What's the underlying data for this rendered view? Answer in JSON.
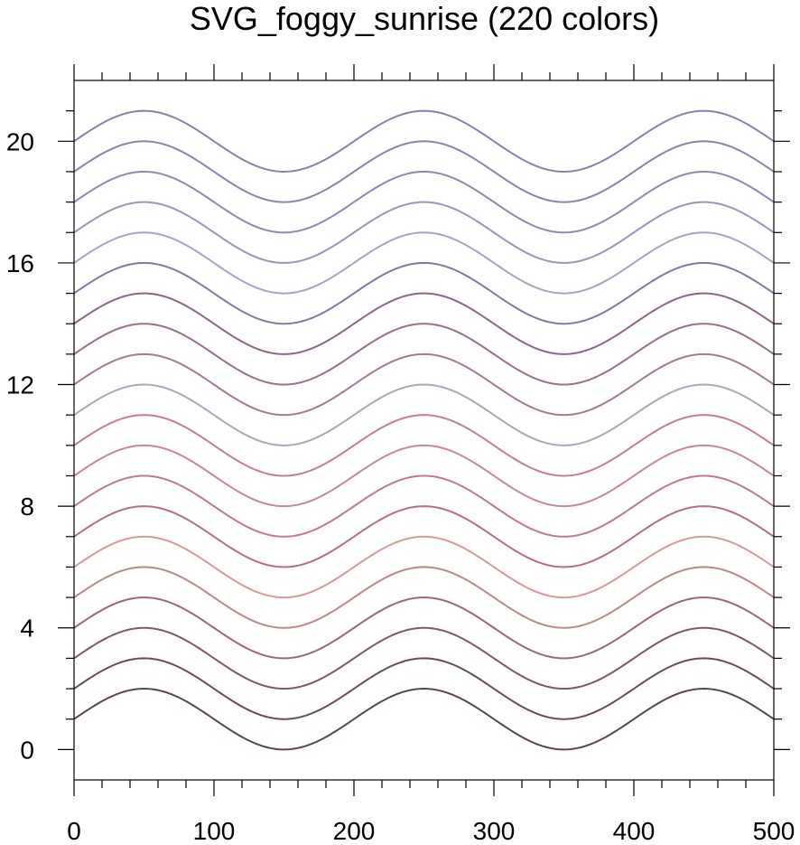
{
  "chart_data": {
    "type": "line",
    "title": "SVG_foggy_sunrise (220 colors)",
    "xlabel": "",
    "ylabel": "",
    "xlim": [
      0,
      500
    ],
    "ylim": [
      -1,
      22
    ],
    "x_ticks": [
      0,
      100,
      200,
      300,
      400,
      500
    ],
    "y_ticks": [
      0,
      4,
      8,
      12,
      16,
      20
    ],
    "grid": false,
    "legend": "none",
    "curve": {
      "function": "y = offset + sin(2*pi*(x - 0)/200)",
      "amplitude": 1,
      "period": 200,
      "x_start": 0,
      "x_end": 500
    },
    "series": [
      {
        "offset": 1,
        "color": "#5b4258"
      },
      {
        "offset": 2,
        "color": "#6a4a5e"
      },
      {
        "offset": 3,
        "color": "#7d5866"
      },
      {
        "offset": 4,
        "color": "#9a6a6e"
      },
      {
        "offset": 5,
        "color": "#b98a86"
      },
      {
        "offset": 6,
        "color": "#d79a98"
      },
      {
        "offset": 7,
        "color": "#b96e7c"
      },
      {
        "offset": 8,
        "color": "#c07a88"
      },
      {
        "offset": 9,
        "color": "#c88894"
      },
      {
        "offset": 10,
        "color": "#c47e90"
      },
      {
        "offset": 11,
        "color": "#b0a4bc"
      },
      {
        "offset": 12,
        "color": "#a27a98"
      },
      {
        "offset": 13,
        "color": "#96708e"
      },
      {
        "offset": 14,
        "color": "#8a6688"
      },
      {
        "offset": 15,
        "color": "#8a74a0"
      },
      {
        "offset": 16,
        "color": "#a6a4c4"
      },
      {
        "offset": 17,
        "color": "#9a96b8"
      },
      {
        "offset": 18,
        "color": "#8c8aae"
      },
      {
        "offset": 19,
        "color": "#8486aa"
      },
      {
        "offset": 20,
        "color": "#8484aa"
      }
    ]
  }
}
